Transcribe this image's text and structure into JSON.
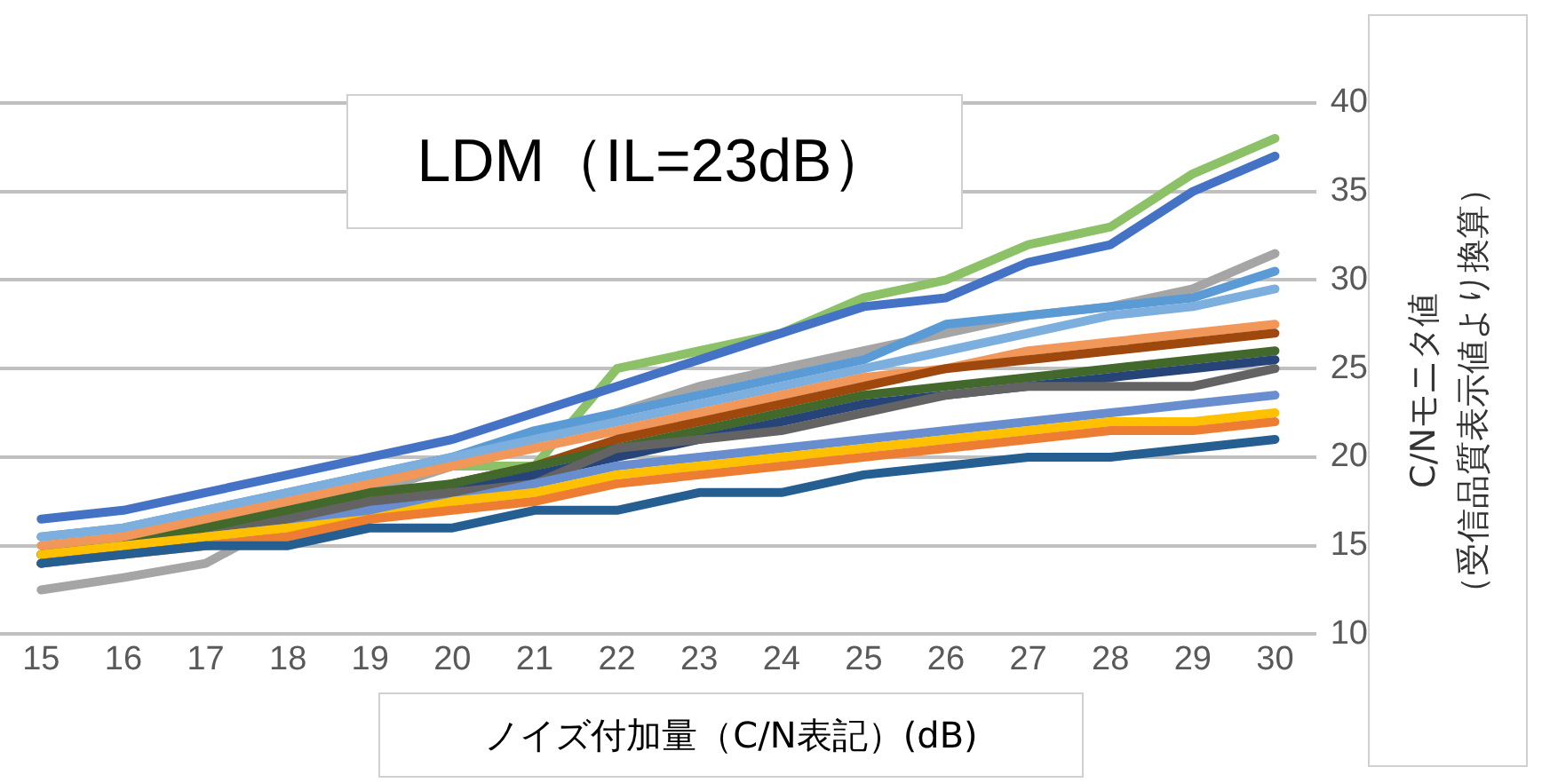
{
  "chart_data": {
    "type": "line",
    "title": "LDM（IL=23dB）",
    "xlabel": "ノイズ付加量（C/N表記）(dB)",
    "ylabel": "C/Nモニタ値（受信品質表示値より換算）",
    "x": [
      15,
      16,
      17,
      18,
      19,
      20,
      21,
      22,
      23,
      24,
      25,
      26,
      27,
      28,
      29,
      30
    ],
    "xlim": [
      14.5,
      30.5
    ],
    "xticks": [
      15,
      16,
      17,
      18,
      19,
      20,
      21,
      22,
      23,
      24,
      25,
      26,
      27,
      28,
      29,
      30
    ],
    "ylim": [
      10,
      40
    ],
    "yticks": [
      10,
      15,
      20,
      25,
      30,
      35,
      40
    ],
    "grid": "y",
    "legend": false,
    "marker": "none",
    "line_style": "solid",
    "series": [
      {
        "color": "#255e91",
        "values": [
          14,
          14.5,
          15,
          15,
          16,
          16,
          17,
          17,
          18,
          18,
          19,
          19.5,
          20,
          20,
          20.5,
          21
        ]
      },
      {
        "color": "#ed7d31",
        "values": [
          14,
          14.5,
          15,
          15.5,
          16.5,
          17,
          17.5,
          18.5,
          19,
          19.5,
          20,
          20.5,
          21,
          21.5,
          21.5,
          22
        ]
      },
      {
        "color": "#ffc000",
        "values": [
          14.5,
          15,
          15.5,
          16,
          16.5,
          17.5,
          18,
          19,
          19.5,
          20,
          20.5,
          21,
          21.5,
          22,
          22,
          22.5
        ]
      },
      {
        "color": "#698ed0",
        "values": [
          null,
          null,
          15.5,
          16,
          17,
          17.5,
          18.5,
          19.5,
          20,
          20.5,
          21,
          21.5,
          22,
          22.5,
          23,
          23.5
        ]
      },
      {
        "color": "#636363",
        "values": [
          14.5,
          14.5,
          15.5,
          16.5,
          17.5,
          18,
          18.5,
          20.5,
          21,
          21.5,
          22.5,
          23.5,
          24,
          24,
          24,
          25
        ]
      },
      {
        "color": "#264478",
        "values": [
          14,
          15,
          15.5,
          16,
          17,
          18,
          19,
          20,
          21,
          22,
          23,
          23.5,
          24,
          24.5,
          25,
          25.5
        ]
      },
      {
        "color": "#43682b",
        "values": [
          14.5,
          15,
          16,
          17,
          18,
          18.5,
          19.5,
          20.5,
          21.5,
          22.5,
          23.5,
          24,
          24.5,
          25,
          25.5,
          26
        ]
      },
      {
        "color": "#9e480e",
        "values": [
          14,
          15,
          15.5,
          16.5,
          17.5,
          18.5,
          19.5,
          21,
          22,
          23,
          24,
          25,
          25.5,
          26,
          26.5,
          27
        ]
      },
      {
        "color": "#f1975a",
        "values": [
          15,
          15.5,
          16.5,
          17.5,
          18.5,
          19.5,
          20.5,
          21.5,
          22.5,
          23.5,
          24.5,
          25,
          26,
          26.5,
          27,
          27.5
        ]
      },
      {
        "color": "#7cafdd",
        "values": [
          15.5,
          16,
          17,
          18,
          19,
          20,
          21,
          22,
          23,
          24,
          25,
          26,
          27,
          28,
          28.5,
          29.5
        ]
      },
      {
        "color": "#5b9bd5",
        "values": [
          15.5,
          16,
          17,
          18,
          19,
          20,
          21.5,
          22.5,
          23.5,
          24.5,
          25.5,
          27.5,
          28,
          28.5,
          29,
          30.5
        ]
      },
      {
        "color": "#a5a5a5",
        "values": [
          12.5,
          13.2,
          14,
          16.5,
          18,
          19.5,
          21,
          22.5,
          24,
          25,
          26,
          27,
          28,
          28.5,
          29.5,
          31.5
        ]
      },
      {
        "color": "#4472c4",
        "values": [
          16.5,
          17,
          18,
          19,
          20,
          21,
          22.5,
          24,
          25.5,
          27,
          28.5,
          29,
          31,
          32,
          35,
          37
        ]
      },
      {
        "color": "#8cc168",
        "values": [
          null,
          null,
          null,
          null,
          19,
          19.5,
          19.5,
          25,
          26,
          27,
          29,
          30,
          32,
          33,
          36,
          38
        ]
      }
    ]
  }
}
